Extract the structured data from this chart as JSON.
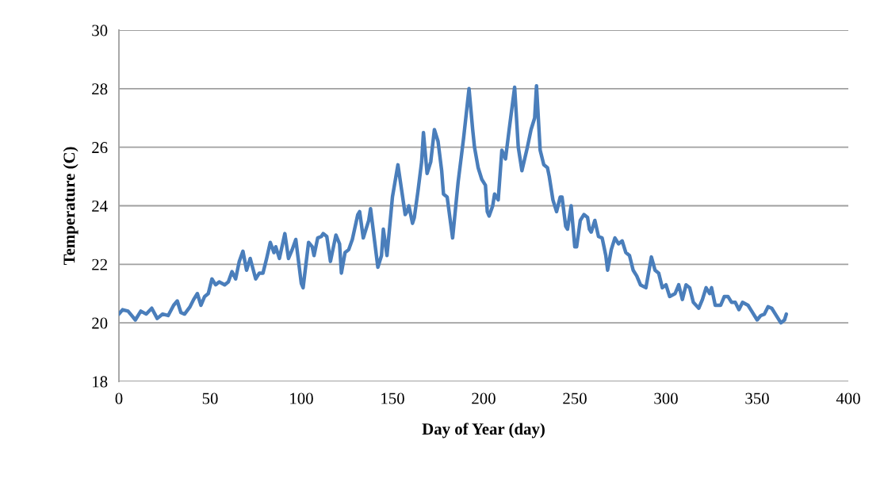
{
  "chart_data": {
    "type": "line",
    "xlabel": "Day of Year (day)",
    "ylabel": "Temperature (C)",
    "xlim": [
      0,
      400
    ],
    "xticks": [
      0,
      50,
      100,
      150,
      200,
      250,
      300,
      350,
      400
    ],
    "ylim": [
      18,
      30
    ],
    "yticks": [
      18,
      20,
      22,
      24,
      26,
      28,
      30
    ],
    "grid": "y",
    "marker": "none",
    "line_style": "solid",
    "series": [
      {
        "color": "#4a7ebb",
        "x": [
          0,
          2,
          5,
          7,
          9,
          12,
          15,
          18,
          21,
          24,
          27,
          30,
          32,
          34,
          36,
          39,
          41,
          43,
          45,
          47,
          49,
          51,
          53,
          55,
          58,
          60,
          62,
          64,
          66,
          68,
          70,
          72,
          75,
          77,
          79,
          81,
          83,
          85,
          86,
          88,
          91,
          93,
          95,
          97,
          100,
          101,
          104,
          106,
          107,
          109,
          111,
          112,
          114,
          116,
          119,
          121,
          122,
          124,
          126,
          128,
          131,
          132,
          134,
          137,
          138,
          140,
          142,
          144,
          145,
          147,
          150,
          153,
          157,
          158,
          159,
          161,
          162,
          164,
          166,
          167,
          169,
          171,
          173,
          175,
          177,
          178,
          180,
          183,
          186,
          189,
          192,
          194,
          195,
          197,
          199,
          201,
          202,
          203,
          205,
          206,
          208,
          210,
          212,
          214,
          217,
          219,
          221,
          224,
          226,
          228,
          229,
          231,
          233,
          235,
          236,
          238,
          240,
          242,
          243,
          245,
          246,
          248,
          250,
          251,
          253,
          255,
          257,
          258,
          259,
          261,
          263,
          265,
          267,
          268,
          270,
          272,
          274,
          276,
          278,
          280,
          282,
          284,
          286,
          289,
          291,
          292,
          294,
          296,
          298,
          300,
          302,
          305,
          307,
          309,
          311,
          313,
          315,
          318,
          320,
          322,
          324,
          325,
          327,
          330,
          332,
          334,
          336,
          338,
          340,
          342,
          345,
          347,
          350,
          352,
          354,
          356,
          358,
          360,
          363,
          365,
          366
        ],
        "values": [
          20.3,
          20.45,
          20.4,
          20.25,
          20.1,
          20.4,
          20.3,
          20.5,
          20.15,
          20.3,
          20.25,
          20.6,
          20.75,
          20.35,
          20.3,
          20.55,
          20.8,
          21.0,
          20.6,
          20.9,
          21.0,
          21.5,
          21.3,
          21.4,
          21.3,
          21.4,
          21.75,
          21.5,
          22.1,
          22.45,
          21.8,
          22.2,
          21.5,
          21.7,
          21.7,
          22.2,
          22.75,
          22.4,
          22.6,
          22.2,
          23.05,
          22.2,
          22.5,
          22.85,
          21.35,
          21.2,
          22.75,
          22.6,
          22.3,
          22.9,
          22.95,
          23.05,
          22.95,
          22.1,
          23.0,
          22.7,
          21.7,
          22.4,
          22.5,
          22.85,
          23.7,
          23.8,
          22.9,
          23.5,
          23.9,
          22.9,
          21.9,
          22.3,
          23.2,
          22.3,
          24.3,
          25.4,
          23.7,
          23.8,
          24.0,
          23.4,
          23.6,
          24.5,
          25.5,
          26.5,
          25.1,
          25.5,
          26.6,
          26.2,
          25.2,
          24.4,
          24.3,
          22.9,
          24.8,
          26.3,
          28.0,
          26.6,
          26.0,
          25.3,
          24.9,
          24.7,
          23.8,
          23.65,
          24.0,
          24.4,
          24.2,
          25.9,
          25.6,
          26.6,
          28.05,
          26.0,
          25.2,
          26.0,
          26.6,
          27.0,
          28.1,
          25.9,
          25.4,
          25.3,
          25.0,
          24.2,
          23.8,
          24.3,
          24.3,
          23.3,
          23.2,
          24.0,
          22.6,
          22.6,
          23.5,
          23.7,
          23.6,
          23.2,
          23.1,
          23.5,
          22.95,
          22.9,
          22.3,
          21.8,
          22.5,
          22.9,
          22.7,
          22.8,
          22.4,
          22.3,
          21.8,
          21.6,
          21.3,
          21.2,
          21.9,
          22.25,
          21.8,
          21.7,
          21.2,
          21.3,
          20.9,
          21.0,
          21.3,
          20.8,
          21.3,
          21.2,
          20.7,
          20.5,
          20.8,
          21.2,
          21.0,
          21.2,
          20.6,
          20.6,
          20.9,
          20.9,
          20.7,
          20.7,
          20.45,
          20.7,
          20.6,
          20.4,
          20.1,
          20.25,
          20.3,
          20.55,
          20.5,
          20.3,
          20.0,
          20.1,
          20.3
        ]
      }
    ]
  }
}
